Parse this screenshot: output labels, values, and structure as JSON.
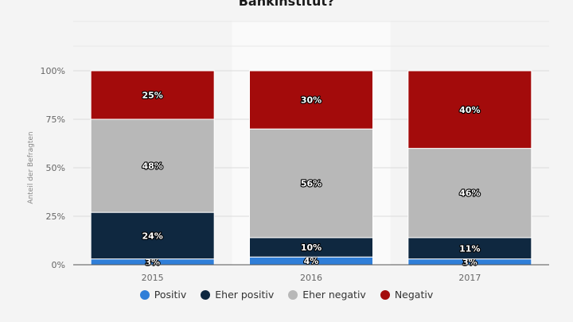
{
  "chart_data": {
    "type": "bar",
    "stacked": true,
    "title": "Bankinstitut?",
    "ylabel": "Anteil der Befragten",
    "ylim": [
      0,
      100
    ],
    "yticks": [
      "0%",
      "25%",
      "50%",
      "75%",
      "100%"
    ],
    "categories": [
      "2015",
      "2016",
      "2017"
    ],
    "highlighted_category": "2016",
    "grid": true,
    "legend_position": "bottom",
    "series": [
      {
        "name": "Positiv",
        "color": "#2f7ed8",
        "values": [
          3,
          4,
          3
        ],
        "labels": [
          "3%",
          "4%",
          "3%"
        ]
      },
      {
        "name": "Eher positiv",
        "color": "#0f2840",
        "values": [
          24,
          10,
          11
        ],
        "labels": [
          "24%",
          "10%",
          "11%"
        ]
      },
      {
        "name": "Eher negativ",
        "color": "#b8b8b8",
        "values": [
          48,
          56,
          46
        ],
        "labels": [
          "48%",
          "56%",
          "46%"
        ]
      },
      {
        "name": "Negativ",
        "color": "#a30b0b",
        "values": [
          25,
          30,
          40
        ],
        "labels": [
          "25%",
          "30%",
          "40%"
        ]
      }
    ]
  }
}
